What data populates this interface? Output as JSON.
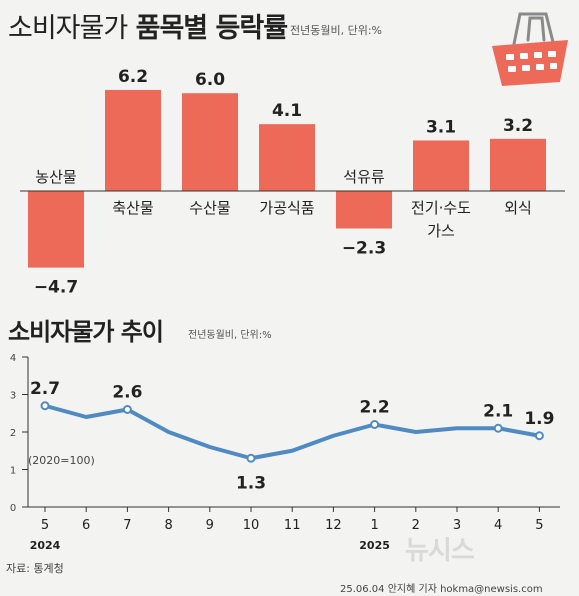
{
  "chart1": {
    "title_light": "소비자물가",
    "title_bold": "품목별 등락률",
    "subtitle": "전년동월비, 단위:%"
  },
  "chart2": {
    "title": "소비자물가 추이",
    "subtitle": "전년동월비, 단위:%",
    "base_note": "(2020=100)",
    "years": [
      "2024",
      "2025"
    ]
  },
  "footer": {
    "source": "자료: 통계청",
    "credit": "25.06.04 안지혜 기자 hokma@newsis.com",
    "brand": "뉴시스"
  },
  "icon": "shopping-basket-icon",
  "colors": {
    "bar": "#ee6a58",
    "line": "#4f8ac2",
    "axis": "#333333"
  },
  "chart_data": [
    {
      "type": "bar",
      "categories": [
        "농산물",
        "축산물",
        "수산물",
        "가공식품",
        "석유류",
        "전기·수도·가스",
        "외식"
      ],
      "values": [
        -4.7,
        6.2,
        6.0,
        4.1,
        -2.3,
        3.1,
        3.2
      ],
      "value_labels": [
        "−4.7",
        "6.2",
        "6.0",
        "4.1",
        "−2.3",
        "3.1",
        "3.2"
      ],
      "category_lines": [
        [
          "농산물"
        ],
        [
          "축산물"
        ],
        [
          "수산물"
        ],
        [
          "가공식품"
        ],
        [
          "석유류"
        ],
        [
          "전기·수도",
          "가스"
        ],
        [
          "외식"
        ]
      ],
      "title": "품목별 등락률"
    },
    {
      "type": "line",
      "x": [
        "5",
        "6",
        "7",
        "8",
        "9",
        "10",
        "11",
        "12",
        "1",
        "2",
        "3",
        "4",
        "5"
      ],
      "values": [
        2.7,
        2.4,
        2.6,
        2.0,
        1.6,
        1.3,
        1.5,
        1.9,
        2.2,
        2.0,
        2.1,
        2.1,
        1.9
      ],
      "labels": {
        "0": "2.7",
        "2": "2.6",
        "5": "1.3",
        "8": "2.2",
        "11": "2.1",
        "12": "1.9"
      },
      "yticks": [
        "0",
        "1",
        "2",
        "3",
        "4"
      ],
      "ylim": [
        0,
        4
      ],
      "title": "소비자물가 추이"
    }
  ]
}
